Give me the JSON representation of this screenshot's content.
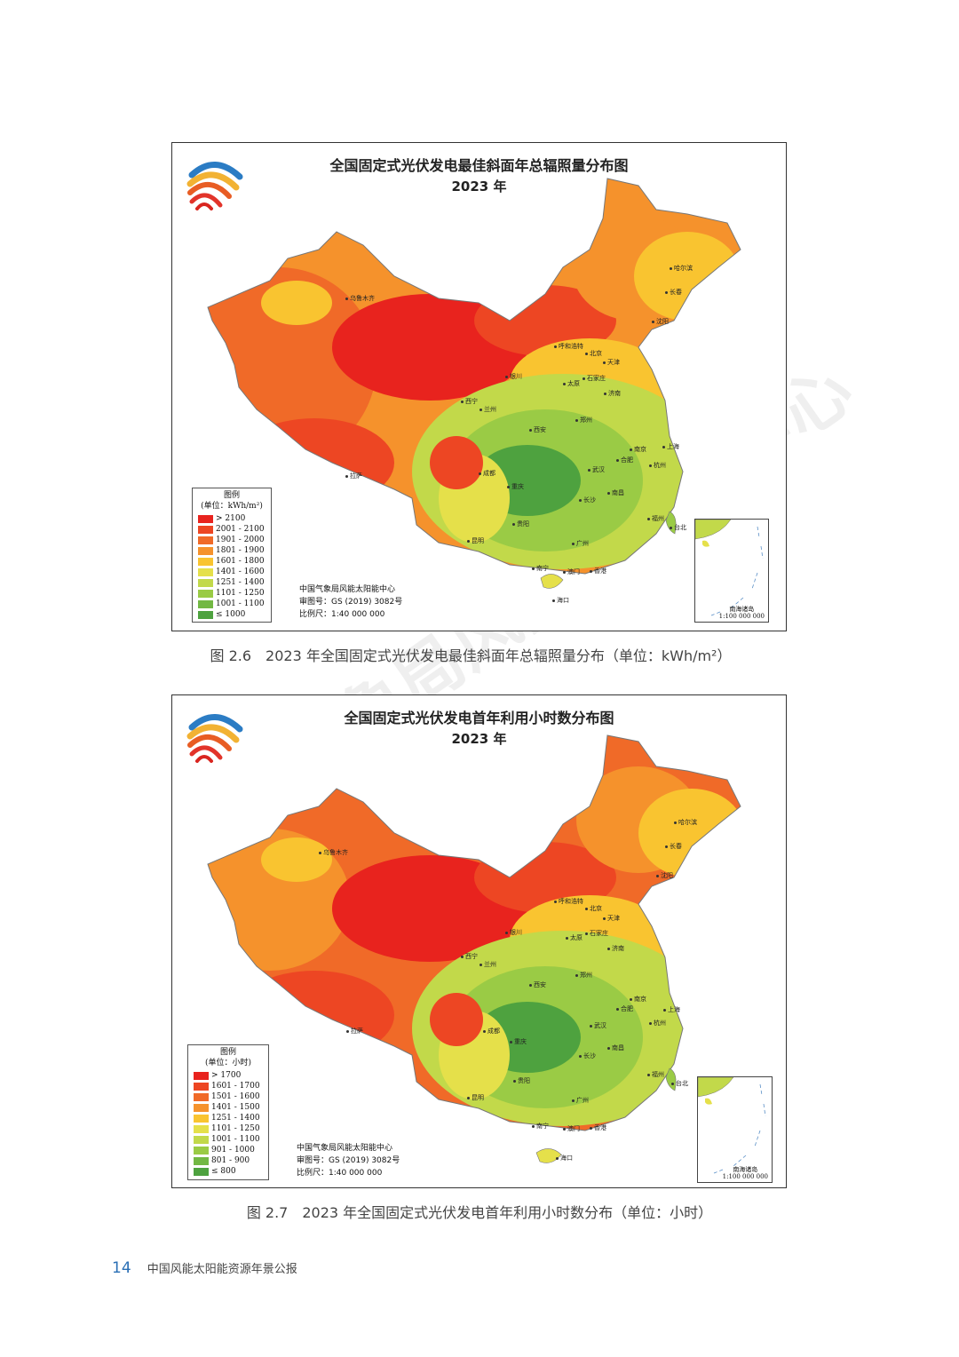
{
  "maps": [
    {
      "title": "全国固定式光伏发电最佳斜面年总辐照量分布图",
      "year": "2023 年",
      "legend_title": "图例",
      "legend_unit": "(单位：kWh/m²)",
      "legend": [
        {
          "label": "> 2100",
          "color": "#e8231e"
        },
        {
          "label": "2001 - 2100",
          "color": "#ed4623"
        },
        {
          "label": "1901 - 2000",
          "color": "#f06a28"
        },
        {
          "label": "1801 - 1900",
          "color": "#f5922c"
        },
        {
          "label": "1601 - 1800",
          "color": "#f9c430"
        },
        {
          "label": "1401 - 1600",
          "color": "#e5e04a"
        },
        {
          "label": "1251 - 1400",
          "color": "#c2d94a"
        },
        {
          "label": "1101 - 1250",
          "color": "#9acb45"
        },
        {
          "label": "1001 - 1100",
          "color": "#72b843"
        },
        {
          "label": "≤ 1000",
          "color": "#4ea23f"
        }
      ],
      "credit": [
        "中国气象局风能太阳能中心",
        "审图号：GS (2019) 3082号",
        "比例尺：1:40 000 000"
      ],
      "inset_label": [
        "南海诸岛",
        "1:100 000 000"
      ],
      "cities": [
        "乌鲁木齐",
        "哈尔滨",
        "长春",
        "沈阳",
        "呼和浩特",
        "北京",
        "天津",
        "银川",
        "太原",
        "石家庄",
        "济南",
        "西宁",
        "兰州",
        "郑州",
        "西安",
        "南京",
        "上海",
        "合肥",
        "杭州",
        "成都",
        "重庆",
        "武汉",
        "长沙",
        "南昌",
        "拉萨",
        "福州",
        "台北",
        "昆明",
        "贵阳",
        "广州",
        "澳门",
        "香港",
        "南宁",
        "海口"
      ],
      "caption": "图 2.6　2023 年全国固定式光伏发电最佳斜面年总辐照量分布（单位：kWh/m²）"
    },
    {
      "title": "全国固定式光伏发电首年利用小时数分布图",
      "year": "2023 年",
      "legend_title": "图例",
      "legend_unit": "(单位：小时)",
      "legend": [
        {
          "label": "> 1700",
          "color": "#e8231e"
        },
        {
          "label": "1601 - 1700",
          "color": "#ed4623"
        },
        {
          "label": "1501 - 1600",
          "color": "#f06a28"
        },
        {
          "label": "1401 - 1500",
          "color": "#f5922c"
        },
        {
          "label": "1251 - 1400",
          "color": "#f9c430"
        },
        {
          "label": "1101 - 1250",
          "color": "#e5e04a"
        },
        {
          "label": "1001 - 1100",
          "color": "#c2d94a"
        },
        {
          "label": "901 - 1000",
          "color": "#9acb45"
        },
        {
          "label": "801 - 900",
          "color": "#72b843"
        },
        {
          "label": "≤ 800",
          "color": "#4ea23f"
        }
      ],
      "credit": [
        "中国气象局风能太阳能中心",
        "审图号：GS (2019) 3082号",
        "比例尺：1:40 000 000"
      ],
      "inset_label": [
        "南海诸岛",
        "1:100 000 000"
      ],
      "cities": [
        "乌鲁木齐",
        "哈尔滨",
        "长春",
        "沈阳",
        "呼和浩特",
        "北京",
        "天津",
        "银川",
        "太原",
        "石家庄",
        "济南",
        "西宁",
        "兰州",
        "郑州",
        "西安",
        "南京",
        "上海",
        "合肥",
        "杭州",
        "成都",
        "重庆",
        "武汉",
        "长沙",
        "南昌",
        "拉萨",
        "福州",
        "台北",
        "昆明",
        "贵阳",
        "广州",
        "澳门",
        "香港",
        "南宁",
        "海口"
      ],
      "caption": "图 2.7　2023 年全国固定式光伏发电首年利用小时数分布（单位：小时）"
    }
  ],
  "footer": {
    "page": "14",
    "title": "中国风能太阳能资源年景公报"
  },
  "watermark": "中国气象局风能太阳能中心"
}
